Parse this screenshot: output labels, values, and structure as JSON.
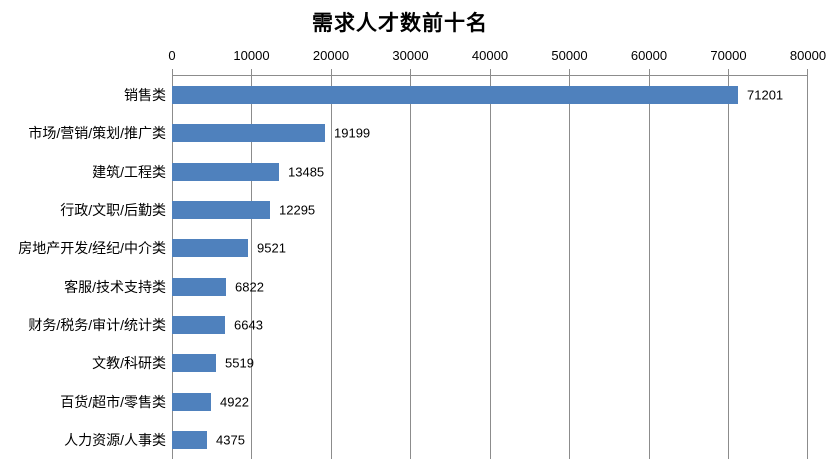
{
  "title": "需求人才数前十名",
  "colors": {
    "bar": "#4f81bd",
    "gridline": "#8c8c8c",
    "text": "#000000",
    "background": "#ffffff"
  },
  "chart_data": {
    "type": "bar",
    "orientation": "horizontal",
    "title": "需求人才数前十名",
    "categories": [
      "销售类",
      "市场/营销/策划/推广类",
      "建筑/工程类",
      "行政/文职/后勤类",
      "房地产开发/经纪/中介类",
      "客服/技术支持类",
      "财务/税务/审计/统计类",
      "文教/科研类",
      "百货/超市/零售类",
      "人力资源/人事类"
    ],
    "values": [
      71201,
      19199,
      13485,
      12295,
      9521,
      6822,
      6643,
      5519,
      4922,
      4375
    ],
    "data_labels": [
      71201,
      19199,
      13485,
      12295,
      9521,
      6822,
      6643,
      5519,
      4922,
      4375
    ],
    "xlim": [
      0,
      80000
    ],
    "xticks": [
      0,
      10000,
      20000,
      30000,
      40000,
      50000,
      60000,
      70000,
      80000
    ],
    "value_axis_position": "top",
    "grid": true,
    "legend": false,
    "xlabel": "",
    "ylabel": ""
  }
}
